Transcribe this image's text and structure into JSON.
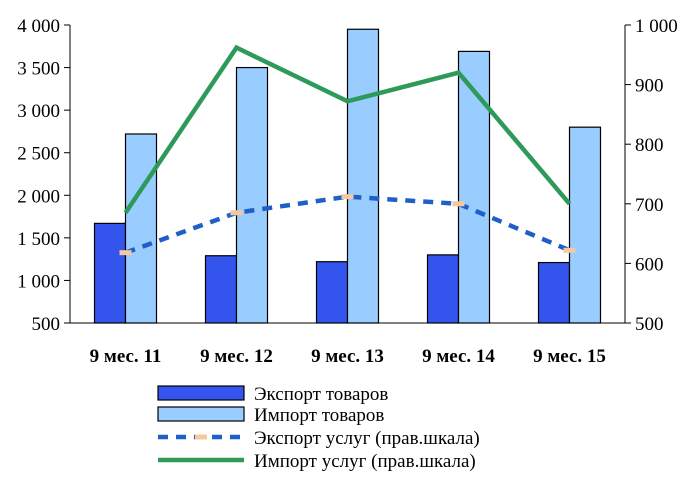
{
  "chart_data": {
    "type": "bar",
    "categories": [
      "9 мес. 11",
      "9 мес. 12",
      "9 мес. 13",
      "9 мес. 14",
      "9 мес. 15"
    ],
    "series": [
      {
        "name": "Экспорт товаров",
        "type": "bar",
        "axis": "left",
        "color": "#3355ee",
        "values": [
          1670,
          1290,
          1220,
          1300,
          1210
        ]
      },
      {
        "name": "Импорт товаров",
        "type": "bar",
        "axis": "left",
        "color": "#99ccff",
        "values": [
          2720,
          3500,
          3950,
          3690,
          2800
        ]
      },
      {
        "name": "Экспорт услуг (прав.шкала)",
        "type": "line",
        "style": "dashed",
        "axis": "right",
        "color": "#1f5fc8",
        "marker_color": "#f5c8a0",
        "values": [
          618,
          685,
          712,
          700,
          622
        ]
      },
      {
        "name": "Импорт услуг (прав.шкала)",
        "type": "line",
        "axis": "right",
        "color": "#2e9a5a",
        "values": [
          685,
          962,
          872,
          920,
          700
        ]
      }
    ],
    "y_left": {
      "ylim": [
        500,
        4000
      ],
      "ticks": [
        "500",
        "1 000",
        "1 500",
        "2 000",
        "2 500",
        "3 000",
        "3 500",
        "4 000"
      ]
    },
    "y_right": {
      "ylim": [
        500,
        1000
      ],
      "ticks": [
        "500",
        "600",
        "700",
        "800",
        "900",
        "1 000"
      ]
    },
    "grid": false,
    "legend": "bottom"
  }
}
